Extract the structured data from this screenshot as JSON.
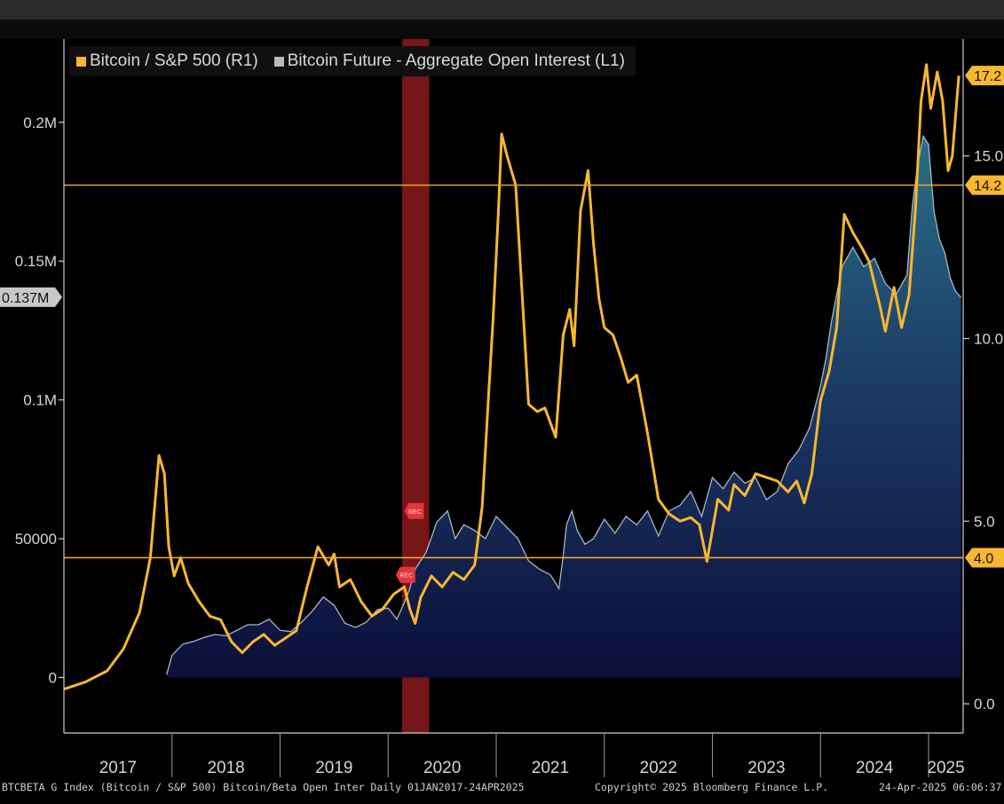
{
  "colors": {
    "background": "#000000",
    "bitcoin_sp500": "#f7b731",
    "open_interest_line": "#aab6c8",
    "open_interest_fill_top": "#2a6f86",
    "open_interest_fill_bottom": "#0c0f3a",
    "recession_band": "#8b1a1a",
    "reference_line": "#f3a326",
    "axis_text": "#d6d6d6"
  },
  "legend": {
    "series_1": "Bitcoin / S&P 500  (R1)",
    "series_2": "Bitcoin Future - Aggregate Open Interest (L1)"
  },
  "left_axis": {
    "ticks": [
      "0",
      "50000",
      "0.1M",
      "0.15M",
      "0.2M"
    ],
    "tag": "0.137M"
  },
  "right_axis": {
    "ticks": [
      "0.0",
      "5.0",
      "10.0",
      "15.0"
    ],
    "tags": [
      "17.2",
      "14.2",
      "4.0"
    ]
  },
  "x_axis": {
    "years": [
      "2017",
      "2018",
      "2019",
      "2020",
      "2021",
      "2022",
      "2023",
      "2024",
      "2025"
    ]
  },
  "markers": {
    "label": "REC"
  },
  "footer": {
    "left": "BTCBETA G Index (Bitcoin / S&P 500) Bitcoin/Beta Open Inter  Daily 01JAN2017-24APR2025",
    "center": "Copyright© 2025 Bloomberg Finance L.P.",
    "right": "24-Apr-2025 06:06:37"
  },
  "chart_data": {
    "type": "line",
    "title": "",
    "xlabel": "",
    "ylabel_left": "",
    "ylabel_right": "",
    "x_range": [
      2017.0,
      2025.32
    ],
    "ylim_left": [
      -20000,
      230000
    ],
    "ylim_right": [
      -0.8,
      18.2
    ],
    "horizontal_lines_right": [
      14.2,
      4.0
    ],
    "recession_band": [
      2020.13,
      2020.38
    ],
    "grid": false,
    "legend_position": "top-left",
    "series": [
      {
        "name": "Bitcoin / S&P 500  (R1)",
        "axis": "right",
        "x": [
          2017.0,
          2017.2,
          2017.4,
          2017.55,
          2017.7,
          2017.8,
          2017.88,
          2017.93,
          2017.97,
          2018.02,
          2018.08,
          2018.15,
          2018.25,
          2018.35,
          2018.45,
          2018.55,
          2018.65,
          2018.75,
          2018.85,
          2018.95,
          2019.05,
          2019.15,
          2019.25,
          2019.35,
          2019.45,
          2019.5,
          2019.55,
          2019.65,
          2019.75,
          2019.85,
          2019.95,
          2020.05,
          2020.15,
          2020.2,
          2020.25,
          2020.3,
          2020.4,
          2020.5,
          2020.6,
          2020.7,
          2020.8,
          2020.87,
          2020.93,
          2020.97,
          2021.02,
          2021.05,
          2021.1,
          2021.18,
          2021.23,
          2021.3,
          2021.38,
          2021.45,
          2021.55,
          2021.62,
          2021.68,
          2021.72,
          2021.78,
          2021.85,
          2021.9,
          2021.95,
          2022.0,
          2022.08,
          2022.15,
          2022.22,
          2022.3,
          2022.4,
          2022.5,
          2022.6,
          2022.7,
          2022.8,
          2022.88,
          2022.95,
          2023.05,
          2023.15,
          2023.2,
          2023.3,
          2023.4,
          2023.5,
          2023.6,
          2023.7,
          2023.78,
          2023.85,
          2023.92,
          2024.0,
          2024.08,
          2024.15,
          2024.22,
          2024.3,
          2024.38,
          2024.45,
          2024.55,
          2024.6,
          2024.68,
          2024.75,
          2024.82,
          2024.88,
          2024.93,
          2024.98,
          2025.02,
          2025.08,
          2025.13,
          2025.18,
          2025.22,
          2025.28
        ],
        "values": [
          0.4,
          0.6,
          0.9,
          1.5,
          2.5,
          4.0,
          6.8,
          6.3,
          4.3,
          3.5,
          4.0,
          3.3,
          2.8,
          2.4,
          2.3,
          1.7,
          1.4,
          1.7,
          1.9,
          1.6,
          1.8,
          2.0,
          3.2,
          4.3,
          3.8,
          4.1,
          3.2,
          3.4,
          2.8,
          2.4,
          2.6,
          3.0,
          3.2,
          2.6,
          2.2,
          2.9,
          3.5,
          3.2,
          3.6,
          3.4,
          3.8,
          5.4,
          8.5,
          10.5,
          13.5,
          15.6,
          15.0,
          14.2,
          11.7,
          8.2,
          8.0,
          8.1,
          7.3,
          10.1,
          10.8,
          9.8,
          13.5,
          14.6,
          12.6,
          11.1,
          10.3,
          10.1,
          9.5,
          8.8,
          9.0,
          7.4,
          5.6,
          5.2,
          5.0,
          5.1,
          4.9,
          3.9,
          5.6,
          5.3,
          6.0,
          5.7,
          6.3,
          6.2,
          6.1,
          5.8,
          6.1,
          5.5,
          6.3,
          8.3,
          9.1,
          10.3,
          13.4,
          12.9,
          12.5,
          12.1,
          10.9,
          10.2,
          11.4,
          10.3,
          11.2,
          13.6,
          16.5,
          17.5,
          16.3,
          17.3,
          16.5,
          14.6,
          15.0,
          17.2
        ]
      },
      {
        "name": "Bitcoin Future - Aggregate Open Interest (L1)",
        "axis": "left",
        "x": [
          2017.95,
          2018.0,
          2018.1,
          2018.2,
          2018.3,
          2018.4,
          2018.5,
          2018.6,
          2018.7,
          2018.8,
          2018.9,
          2019.0,
          2019.1,
          2019.2,
          2019.3,
          2019.4,
          2019.5,
          2019.6,
          2019.7,
          2019.8,
          2019.9,
          2020.0,
          2020.08,
          2020.15,
          2020.2,
          2020.25,
          2020.35,
          2020.45,
          2020.55,
          2020.62,
          2020.7,
          2020.8,
          2020.9,
          2021.0,
          2021.1,
          2021.2,
          2021.3,
          2021.4,
          2021.5,
          2021.55,
          2021.58,
          2021.62,
          2021.65,
          2021.7,
          2021.75,
          2021.82,
          2021.9,
          2022.0,
          2022.1,
          2022.2,
          2022.3,
          2022.4,
          2022.5,
          2022.6,
          2022.7,
          2022.8,
          2022.9,
          2023.0,
          2023.1,
          2023.2,
          2023.3,
          2023.4,
          2023.5,
          2023.6,
          2023.7,
          2023.8,
          2023.9,
          2024.0,
          2024.05,
          2024.1,
          2024.2,
          2024.3,
          2024.4,
          2024.5,
          2024.6,
          2024.7,
          2024.8,
          2024.85,
          2024.9,
          2024.95,
          2025.0,
          2025.05,
          2025.1,
          2025.15,
          2025.2,
          2025.25,
          2025.3
        ],
        "values": [
          1000,
          8000,
          12000,
          13000,
          14500,
          15500,
          15000,
          17000,
          19000,
          19000,
          21000,
          17000,
          16500,
          20000,
          24000,
          29000,
          26000,
          19500,
          18000,
          20000,
          24500,
          25000,
          21000,
          27000,
          32000,
          39000,
          45000,
          56000,
          60000,
          50000,
          55000,
          53000,
          50000,
          58000,
          54000,
          50000,
          42000,
          39000,
          37000,
          34000,
          32000,
          44000,
          55000,
          60000,
          53000,
          48000,
          50000,
          57000,
          52000,
          58000,
          55000,
          60000,
          51000,
          60000,
          62000,
          67000,
          58000,
          72000,
          68000,
          74000,
          70000,
          72000,
          64000,
          67000,
          77000,
          82000,
          90000,
          105000,
          115000,
          128000,
          148000,
          155000,
          148000,
          151000,
          142000,
          138000,
          145000,
          170000,
          185000,
          195000,
          192000,
          168000,
          158000,
          153000,
          144000,
          139000,
          137000
        ]
      }
    ]
  }
}
